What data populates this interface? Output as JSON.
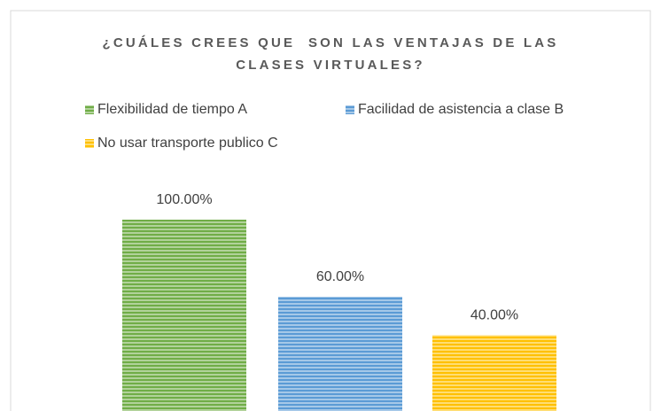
{
  "chart_data": {
    "type": "bar",
    "title": "¿CUÁLES CREES QUE  SON LAS VENTAJAS DE LAS CLASES VIRTUALES?",
    "series": [
      {
        "name": "Flexibilidad de tiempo A",
        "color": "#70ad47",
        "values": [
          100
        ],
        "value_labels": [
          "100.00%"
        ]
      },
      {
        "name": "Facilidad de asistencia a clase B",
        "color": "#5b9bd5",
        "values": [
          60
        ],
        "value_labels": [
          "60.00%"
        ]
      },
      {
        "name": "No usar transporte publico C",
        "color": "#ffc000",
        "values": [
          40
        ],
        "value_labels": [
          "40.00%"
        ]
      }
    ]
  }
}
